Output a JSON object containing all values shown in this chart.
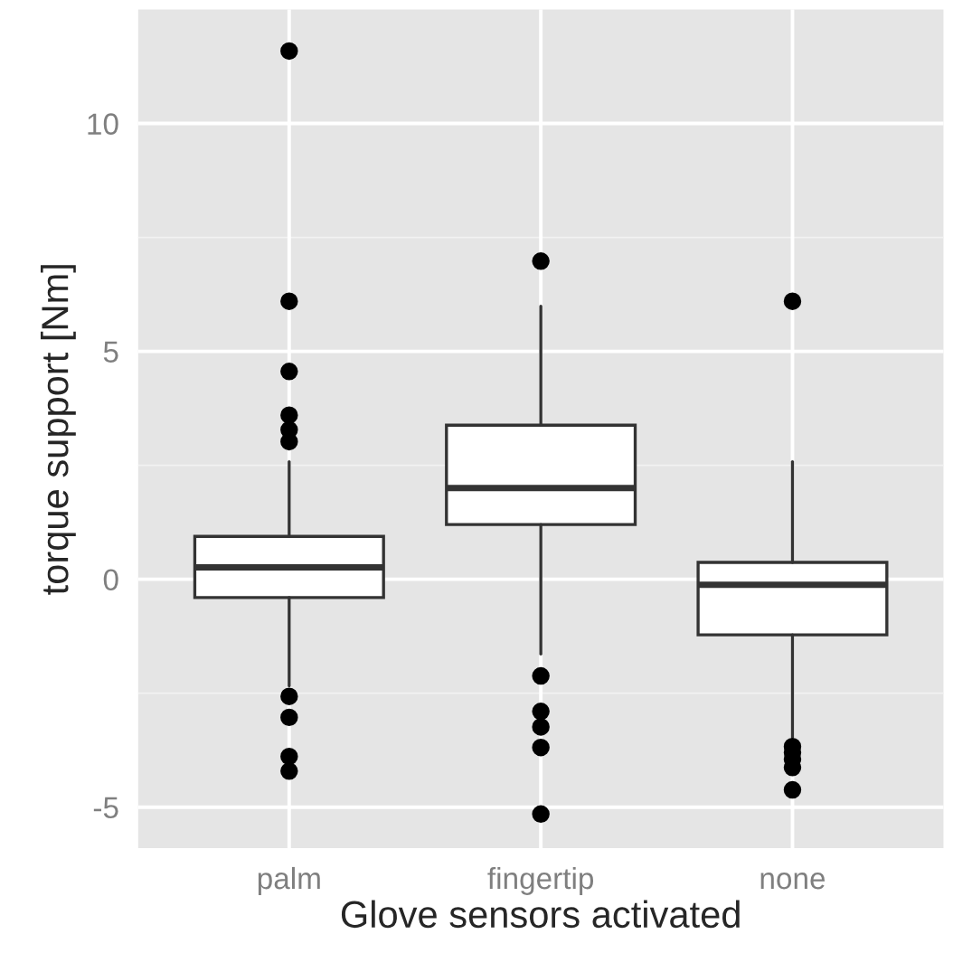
{
  "chart_data": {
    "type": "box",
    "xlabel": "Glove sensors activated",
    "ylabel": "torque support [Nm]",
    "categories": [
      "palm",
      "fingertip",
      "none"
    ],
    "boxes": [
      {
        "low": -2.34,
        "q1": -0.4,
        "median": 0.26,
        "q3": 0.94,
        "high": 2.58,
        "outliers": [
          11.59,
          6.1,
          4.56,
          3.6,
          3.28,
          3.02,
          -2.57,
          -3.03,
          -3.89,
          -4.21
        ]
      },
      {
        "low": -1.64,
        "q1": 1.2,
        "median": 2.0,
        "q3": 3.38,
        "high": 5.99,
        "outliers": [
          6.98,
          -2.12,
          -2.9,
          -3.24,
          -3.69,
          -5.15
        ]
      },
      {
        "low": -3.47,
        "q1": -1.22,
        "median": -0.12,
        "q3": 0.37,
        "high": 2.58,
        "outliers": [
          6.1,
          -3.67,
          -3.8,
          -3.95,
          -4.13,
          -4.62
        ]
      }
    ],
    "ylim": [
      -5.9,
      12.5
    ],
    "yticks": [
      -5,
      0,
      5,
      10
    ],
    "grid": true
  }
}
